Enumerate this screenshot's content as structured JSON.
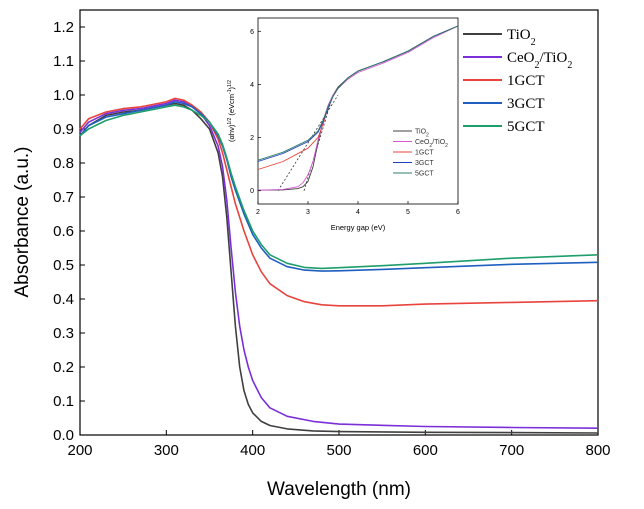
{
  "chart_data": [
    {
      "type": "line",
      "title": "",
      "xlabel": "Wavelength (nm)",
      "ylabel": "Absorbance (a.u.)",
      "xlim": [
        200,
        800
      ],
      "ylim": [
        0.0,
        1.25
      ],
      "xticks": [
        200,
        300,
        400,
        500,
        600,
        700,
        800
      ],
      "yticks": [
        0.0,
        0.1,
        0.2,
        0.3,
        0.4,
        0.5,
        0.6,
        0.7,
        0.8,
        0.9,
        1.0,
        1.1,
        1.2
      ],
      "grid": false,
      "legend_position": "top-right",
      "series": [
        {
          "name": "TiO2",
          "label_main": "TiO",
          "label_sub": "2",
          "label_tail": "",
          "label_sub2": "",
          "color": "#404040",
          "x": [
            200,
            210,
            230,
            250,
            270,
            290,
            300,
            310,
            320,
            330,
            340,
            350,
            360,
            365,
            370,
            375,
            380,
            385,
            390,
            395,
            400,
            410,
            420,
            440,
            470,
            500,
            600,
            700,
            800
          ],
          "y": [
            0.88,
            0.91,
            0.94,
            0.95,
            0.955,
            0.965,
            0.97,
            0.975,
            0.97,
            0.955,
            0.93,
            0.9,
            0.83,
            0.76,
            0.64,
            0.48,
            0.32,
            0.2,
            0.13,
            0.09,
            0.065,
            0.04,
            0.028,
            0.018,
            0.012,
            0.01,
            0.008,
            0.007,
            0.006
          ]
        },
        {
          "name": "CeO2/TiO2",
          "label_main": "CeO",
          "label_sub": "2",
          "label_tail": "/TiO",
          "label_sub2": "2",
          "color": "#7B2FD9",
          "x": [
            200,
            210,
            230,
            250,
            270,
            290,
            300,
            310,
            320,
            330,
            340,
            350,
            360,
            365,
            370,
            375,
            380,
            385,
            390,
            395,
            400,
            410,
            420,
            440,
            470,
            500,
            600,
            700,
            800
          ],
          "y": [
            0.89,
            0.92,
            0.945,
            0.955,
            0.96,
            0.97,
            0.975,
            0.985,
            0.98,
            0.965,
            0.945,
            0.91,
            0.85,
            0.79,
            0.69,
            0.55,
            0.42,
            0.32,
            0.25,
            0.2,
            0.16,
            0.11,
            0.08,
            0.055,
            0.04,
            0.032,
            0.025,
            0.022,
            0.02
          ]
        },
        {
          "name": "1GCT",
          "label_main": "1GCT",
          "label_sub": "",
          "label_tail": "",
          "label_sub2": "",
          "color": "#E8433D",
          "x": [
            200,
            210,
            230,
            250,
            270,
            290,
            300,
            310,
            320,
            330,
            340,
            350,
            360,
            365,
            370,
            375,
            380,
            390,
            400,
            410,
            420,
            440,
            460,
            480,
            500,
            550,
            600,
            700,
            800
          ],
          "y": [
            0.9,
            0.93,
            0.95,
            0.96,
            0.965,
            0.975,
            0.98,
            0.99,
            0.985,
            0.97,
            0.95,
            0.92,
            0.87,
            0.83,
            0.78,
            0.73,
            0.68,
            0.6,
            0.53,
            0.48,
            0.445,
            0.41,
            0.392,
            0.383,
            0.38,
            0.38,
            0.385,
            0.39,
            0.395
          ]
        },
        {
          "name": "3GCT",
          "label_main": "3GCT",
          "label_sub": "",
          "label_tail": "",
          "label_sub2": "",
          "color": "#1F5FBF",
          "x": [
            200,
            210,
            230,
            250,
            270,
            290,
            300,
            310,
            320,
            330,
            340,
            350,
            360,
            365,
            370,
            375,
            380,
            390,
            400,
            410,
            420,
            440,
            460,
            480,
            500,
            550,
            600,
            700,
            800
          ],
          "y": [
            0.88,
            0.91,
            0.935,
            0.945,
            0.955,
            0.965,
            0.97,
            0.98,
            0.975,
            0.965,
            0.945,
            0.92,
            0.88,
            0.85,
            0.81,
            0.76,
            0.72,
            0.65,
            0.59,
            0.55,
            0.52,
            0.495,
            0.485,
            0.482,
            0.483,
            0.487,
            0.492,
            0.502,
            0.508
          ]
        },
        {
          "name": "5GCT",
          "label_main": "5GCT",
          "label_sub": "",
          "label_tail": "",
          "label_sub2": "",
          "color": "#1E9E6A",
          "x": [
            200,
            210,
            230,
            250,
            270,
            290,
            300,
            310,
            320,
            330,
            340,
            350,
            360,
            365,
            370,
            375,
            380,
            390,
            400,
            410,
            420,
            440,
            460,
            480,
            500,
            550,
            600,
            700,
            800
          ],
          "y": [
            0.88,
            0.9,
            0.925,
            0.94,
            0.95,
            0.96,
            0.965,
            0.97,
            0.965,
            0.955,
            0.94,
            0.92,
            0.885,
            0.855,
            0.815,
            0.77,
            0.73,
            0.66,
            0.6,
            0.56,
            0.53,
            0.505,
            0.493,
            0.49,
            0.492,
            0.498,
            0.505,
            0.52,
            0.53
          ]
        }
      ]
    },
    {
      "type": "line",
      "title": "",
      "xlabel": "Energy gap (eV)",
      "ylabel_main": "(αhν)",
      "ylabel_sup1": "1/2",
      "ylabel_mid": " (eVcm",
      "ylabel_sup2": "-1",
      "ylabel_end": ")",
      "ylabel_sup3": "1/2",
      "xlim": [
        2,
        6
      ],
      "ylim": [
        -0.5,
        6.5
      ],
      "xticks": [
        2,
        3,
        4,
        5,
        6
      ],
      "yticks": [
        0,
        2,
        4,
        6
      ],
      "grid": false,
      "legend_position": "bottom-right",
      "tangent_lines": [
        {
          "x": [
            2.4,
            3.6
          ],
          "y": [
            0,
            3.6
          ]
        },
        {
          "x": [
            2.92,
            3.5
          ],
          "y": [
            0,
            3.6
          ]
        }
      ],
      "series": [
        {
          "name": "TiO2",
          "label_main": "TiO",
          "label_sub": "2",
          "label_tail": "",
          "label_sub2": "",
          "color": "#404040",
          "x": [
            2,
            2.5,
            2.8,
            2.9,
            3.0,
            3.1,
            3.2,
            3.3,
            3.4,
            3.5,
            3.6,
            3.8,
            4.0,
            4.5,
            5.0,
            5.5,
            6.0
          ],
          "y": [
            0.02,
            0.03,
            0.08,
            0.15,
            0.35,
            0.9,
            1.8,
            2.6,
            3.2,
            3.6,
            3.9,
            4.25,
            4.5,
            4.85,
            5.25,
            5.8,
            6.2
          ]
        },
        {
          "name": "CeO2/TiO2",
          "label_main": "CeO",
          "label_sub": "2",
          "label_tail": "/TiO",
          "label_sub2": "2",
          "color": "#D35AD3",
          "x": [
            2,
            2.5,
            2.8,
            2.9,
            3.0,
            3.1,
            3.2,
            3.3,
            3.4,
            3.5,
            3.6,
            3.8,
            4.0,
            4.5,
            5.0,
            5.5,
            6.0
          ],
          "y": [
            0.02,
            0.05,
            0.15,
            0.3,
            0.6,
            1.1,
            1.9,
            2.6,
            3.2,
            3.6,
            3.85,
            4.2,
            4.45,
            4.8,
            5.2,
            5.75,
            6.2
          ]
        },
        {
          "name": "1GCT",
          "label_main": "1GCT",
          "label_sub": "",
          "label_tail": "",
          "label_sub2": "",
          "color": "#E8433D",
          "x": [
            2,
            2.5,
            3.0,
            3.2,
            3.3,
            3.4,
            3.5,
            3.6,
            3.8,
            4.0,
            4.5,
            5.0,
            5.5,
            6.0
          ],
          "y": [
            0.8,
            1.1,
            1.6,
            2.0,
            2.5,
            3.1,
            3.55,
            3.85,
            4.25,
            4.5,
            4.85,
            5.25,
            5.8,
            6.2
          ]
        },
        {
          "name": "3GCT",
          "label_main": "3GCT",
          "label_sub": "",
          "label_tail": "",
          "label_sub2": "",
          "color": "#1F3FBF",
          "x": [
            2,
            2.5,
            3.0,
            3.2,
            3.3,
            3.4,
            3.5,
            3.6,
            3.8,
            4.0,
            4.5,
            5.0,
            5.5,
            6.0
          ],
          "y": [
            1.1,
            1.4,
            1.85,
            2.2,
            2.6,
            3.1,
            3.55,
            3.85,
            4.25,
            4.5,
            4.85,
            5.25,
            5.8,
            6.2
          ]
        },
        {
          "name": "5GCT",
          "label_main": "5GCT",
          "label_sub": "",
          "label_tail": "",
          "label_sub2": "",
          "color": "#2E7F6A",
          "x": [
            2,
            2.5,
            3.0,
            3.2,
            3.3,
            3.4,
            3.5,
            3.6,
            3.8,
            4.0,
            4.5,
            5.0,
            5.5,
            6.0
          ],
          "y": [
            1.15,
            1.45,
            1.9,
            2.25,
            2.65,
            3.15,
            3.55,
            3.85,
            4.25,
            4.5,
            4.85,
            5.25,
            5.8,
            6.2
          ]
        }
      ]
    }
  ]
}
